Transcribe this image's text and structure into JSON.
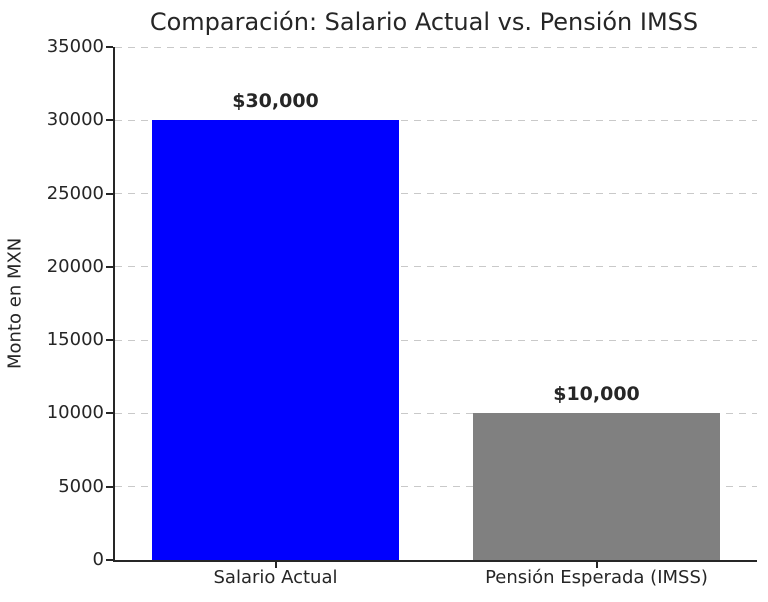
{
  "chart_data": {
    "type": "bar",
    "title": "Comparación: Salario Actual vs. Pensión IMSS",
    "ylabel": "Monto en MXN",
    "xlabel": "",
    "categories": [
      "Salario Actual",
      "Pensión Esperada (IMSS)"
    ],
    "values": [
      30000,
      10000
    ],
    "bar_labels": [
      "$30,000",
      "$10,000"
    ],
    "bar_colors": [
      "#0000ff",
      "#808080"
    ],
    "ylim": [
      0,
      35000
    ],
    "yticks": [
      0,
      5000,
      10000,
      15000,
      20000,
      25000,
      30000,
      35000
    ],
    "grid": "horizontal-dashed",
    "legend": "none",
    "text_color": "#262626",
    "grid_color": "#c9c9c9"
  }
}
